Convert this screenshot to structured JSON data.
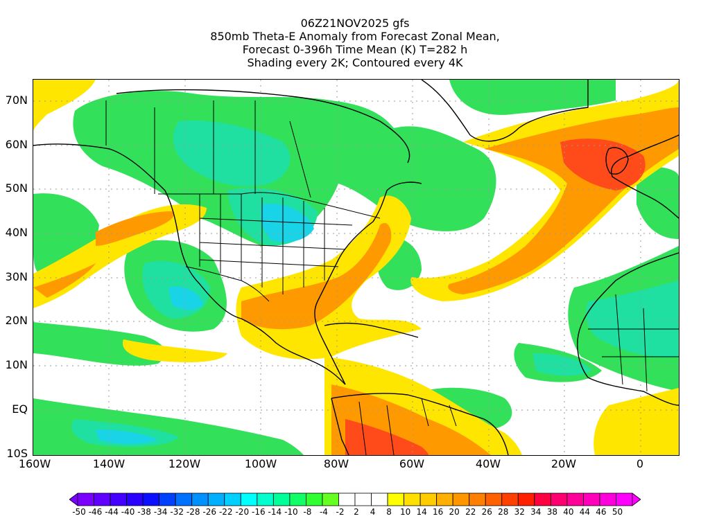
{
  "title": {
    "line1": "06Z21NOV2025 gfs",
    "line2": "850mb Theta-E Anomaly from Forecast Zonal Mean,",
    "line3": "Forecast 0-396h Time Mean (K) T=282 h",
    "line4": "Shading every 2K; Contoured every 4K"
  },
  "axes": {
    "lat_labels": [
      "70N",
      "60N",
      "50N",
      "40N",
      "30N",
      "20N",
      "10N",
      "EQ",
      "10S"
    ],
    "lon_labels": [
      "160W",
      "140W",
      "120W",
      "100W",
      "80W",
      "60W",
      "40W",
      "20W",
      "0"
    ]
  },
  "colorbar": {
    "labels": [
      "-50",
      "-46",
      "-44",
      "-40",
      "-38",
      "-34",
      "-32",
      "-28",
      "-26",
      "-22",
      "-20",
      "-16",
      "-14",
      "-10",
      "-8",
      "-4",
      "-2",
      "2",
      "4",
      "8",
      "10",
      "14",
      "16",
      "20",
      "22",
      "26",
      "28",
      "32",
      "34",
      "38",
      "40",
      "44",
      "46",
      "50"
    ],
    "colors": [
      "#7a00ff",
      "#6000ff",
      "#4400ff",
      "#2a00ff",
      "#0a10ff",
      "#0040ff",
      "#0070ff",
      "#0090ff",
      "#00b0ff",
      "#00d0ff",
      "#00ffff",
      "#00ffcc",
      "#00ff99",
      "#10ff66",
      "#30ff33",
      "#66ff22",
      "#ffffff",
      "#ffffff",
      "#ffffff",
      "#ffff00",
      "#ffe000",
      "#ffcc00",
      "#ffb000",
      "#ff9600",
      "#ff8000",
      "#ff6000",
      "#ff4000",
      "#ff2000",
      "#ff0040",
      "#ff0070",
      "#ff0099",
      "#ff00bb",
      "#ff00dd",
      "#ff00ff"
    ]
  },
  "palette": {
    "green": "#33e05a",
    "teal": "#1fe0a0",
    "cyan": "#19d3e6",
    "yellow": "#ffe600",
    "orange": "#ff9900",
    "red": "#ff4a1a",
    "coast": "#000000"
  }
}
